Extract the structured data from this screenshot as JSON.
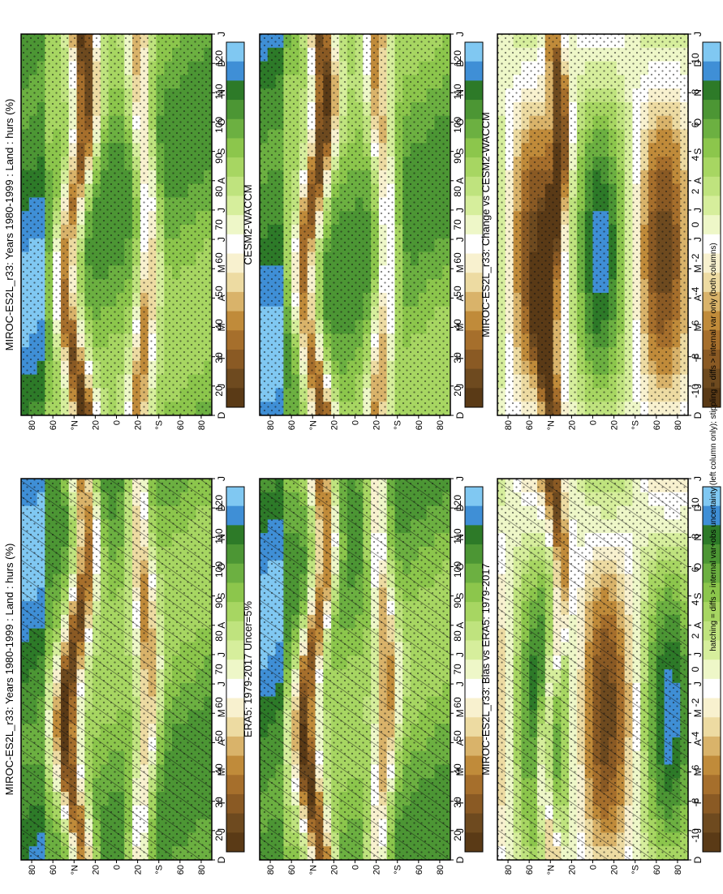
{
  "figure": {
    "footnote": "hatching = diffs > internal var+obs uncertainty (left column only); stippling = diffs > internal var only (both columns)"
  },
  "colors": {
    "abs_scale": [
      "#5a3a16",
      "#6e4a1f",
      "#8a5a24",
      "#a66f2c",
      "#c08b3a",
      "#d9b36a",
      "#eddba2",
      "#f8f1cf",
      "#ffffff",
      "#eef7c8",
      "#d6ee9c",
      "#bfe37e",
      "#a7d662",
      "#8cc64c",
      "#6cb041",
      "#4c9634",
      "#2d7a28",
      "#3f8fd6",
      "#80c8f2"
    ],
    "diff_scale": [
      "#5a3a16",
      "#6e4a1f",
      "#8a5a24",
      "#a66f2c",
      "#c08b3a",
      "#d9b36a",
      "#eddba2",
      "#f8f1cf",
      "#ffffff",
      "#eef7c8",
      "#d6ee9c",
      "#bfe37e",
      "#a7d662",
      "#8cc64c",
      "#6cb041",
      "#4c9634",
      "#2d7a28",
      "#3f8fd6",
      "#80c8f2"
    ]
  },
  "chart_data": [
    {
      "type": "heatmap",
      "title": "MIROC-ES2L_r33: Years 1980-1999 : Land : hurs (%)",
      "x": [
        "D",
        "J",
        "F",
        "M",
        "A",
        "M",
        "J",
        "J",
        "A",
        "S",
        "O",
        "N",
        "D",
        "J"
      ],
      "y_ticks": [
        "80",
        "60",
        "°N",
        "20",
        "0",
        "20",
        "°S",
        "60",
        "80"
      ],
      "colorbar_ticks": [
        "120",
        "110",
        "100",
        "90",
        "80",
        "70",
        "60",
        "50",
        "40",
        "30",
        "20"
      ],
      "hatching": true,
      "stippling": true
    },
    {
      "type": "heatmap",
      "title": "ERA5: 1979-2017 Uncer=5%",
      "x": [
        "D",
        "J",
        "F",
        "M",
        "A",
        "M",
        "J",
        "J",
        "A",
        "S",
        "O",
        "N",
        "D",
        "J"
      ],
      "y_ticks": [
        "80",
        "60",
        "°N",
        "20",
        "0",
        "20",
        "°S",
        "60",
        "80"
      ],
      "colorbar_ticks": [
        "120",
        "110",
        "100",
        "90",
        "80",
        "70",
        "60",
        "50",
        "40",
        "30",
        "20"
      ],
      "hatching": true,
      "stippling": true
    },
    {
      "type": "heatmap",
      "title": "MIROC-ES2L_r33: Bias vs ERA5: 1979-2017",
      "x": [
        "D",
        "J",
        "F",
        "M",
        "A",
        "M",
        "J",
        "J",
        "A",
        "S",
        "O",
        "N",
        "D",
        "J"
      ],
      "y_ticks": [
        "80",
        "60",
        "°N",
        "20",
        "0",
        "20",
        "°S",
        "60",
        "80"
      ],
      "colorbar_ticks": [
        "10",
        "8",
        "6",
        "4",
        "2",
        "0",
        "-2",
        "-4",
        "-6",
        "-8",
        "-10"
      ],
      "hatching": true,
      "stippling": true
    },
    {
      "type": "heatmap",
      "title": "MIROC-ES2L_r33: Years 1980-1999 : Land : hurs (%)",
      "x": [
        "D",
        "J",
        "F",
        "M",
        "A",
        "M",
        "J",
        "J",
        "A",
        "S",
        "O",
        "N",
        "D",
        "J"
      ],
      "y_ticks": [
        "80",
        "60",
        "°N",
        "20",
        "0",
        "20",
        "°S",
        "60",
        "80"
      ],
      "colorbar_ticks": [
        "120",
        "110",
        "100",
        "90",
        "80",
        "70",
        "60",
        "50",
        "40",
        "30",
        "20"
      ],
      "hatching": false,
      "stippling": true
    },
    {
      "type": "heatmap",
      "title": "CESM2-WACCM",
      "x": [
        "D",
        "J",
        "F",
        "M",
        "A",
        "M",
        "J",
        "J",
        "A",
        "S",
        "O",
        "N",
        "D",
        "J"
      ],
      "y_ticks": [
        "80",
        "60",
        "°N",
        "20",
        "0",
        "20",
        "°S",
        "60",
        "80"
      ],
      "colorbar_ticks": [
        "120",
        "110",
        "100",
        "90",
        "80",
        "70",
        "60",
        "50",
        "40",
        "30",
        "20"
      ],
      "hatching": false,
      "stippling": true
    },
    {
      "type": "heatmap",
      "title": "MIROC-ES2L_r33: Change vs CESM2-WACCM",
      "x": [
        "D",
        "J",
        "F",
        "M",
        "A",
        "M",
        "J",
        "J",
        "A",
        "S",
        "O",
        "N",
        "D",
        "J"
      ],
      "y_ticks": [
        "80",
        "60",
        "°N",
        "20",
        "0",
        "20",
        "°S",
        "60",
        "80"
      ],
      "colorbar_ticks": [
        "10",
        "8",
        "6",
        "4",
        "2",
        "0",
        "-2",
        "-4",
        "-6",
        "-8",
        "-10"
      ],
      "hatching": false,
      "stippling": true
    }
  ]
}
